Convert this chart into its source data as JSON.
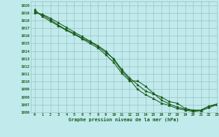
{
  "title": "Graphe pression niveau de la mer (hPa)",
  "bg_color": "#c0eaec",
  "grid_color": "#9abfc4",
  "line_color": "#1a5c1a",
  "xlim": [
    -0.5,
    23
  ],
  "ylim": [
    1006,
    1020.5
  ],
  "xticks": [
    0,
    1,
    2,
    3,
    4,
    5,
    6,
    7,
    8,
    9,
    10,
    11,
    12,
    13,
    14,
    15,
    16,
    17,
    18,
    19,
    20,
    21,
    22,
    23
  ],
  "yticks": [
    1006,
    1007,
    1008,
    1009,
    1010,
    1011,
    1012,
    1013,
    1014,
    1015,
    1016,
    1017,
    1018,
    1019,
    1020
  ],
  "series1": [
    1019.2,
    1018.7,
    1018.1,
    1017.4,
    1016.8,
    1016.3,
    1015.7,
    1015.2,
    1014.6,
    1013.8,
    1013.0,
    1011.6,
    1010.5,
    1009.6,
    1008.8,
    1008.4,
    1008.0,
    1007.4,
    1007.2,
    1006.5,
    1006.3,
    1006.3,
    1006.8,
    1007.1
  ],
  "series2": [
    1019.4,
    1018.5,
    1017.9,
    1017.3,
    1016.7,
    1016.2,
    1015.6,
    1015.0,
    1014.4,
    1013.5,
    1012.5,
    1011.1,
    1010.1,
    1010.1,
    1009.4,
    1008.5,
    1007.6,
    1007.1,
    1006.7,
    1006.4,
    1006.2,
    1006.3,
    1006.8,
    1007.0
  ],
  "series3": [
    1019.0,
    1018.8,
    1018.3,
    1017.7,
    1017.1,
    1016.5,
    1015.9,
    1015.3,
    1014.7,
    1014.0,
    1012.9,
    1011.4,
    1010.3,
    1009.0,
    1008.3,
    1007.8,
    1007.2,
    1006.9,
    1006.5,
    1006.3,
    1006.1,
    1006.2,
    1006.6,
    1007.0
  ]
}
